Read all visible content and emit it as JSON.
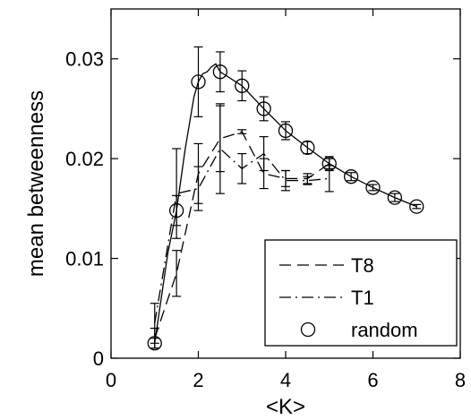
{
  "chart_data": {
    "type": "line",
    "title": "",
    "xlabel": "<K>",
    "ylabel": "mean betweenness",
    "xlim": [
      0,
      8
    ],
    "ylim": [
      0,
      0.035
    ],
    "xticks": [
      0,
      2,
      4,
      6,
      8
    ],
    "yticks": [
      0,
      0.01,
      0.02,
      0.03
    ],
    "xtick_labels": [
      "0",
      "2",
      "4",
      "6",
      "8"
    ],
    "ytick_labels": [
      "0",
      "0.01",
      "0.02",
      "0.03"
    ],
    "grid": false,
    "legend_position": "bottom-right",
    "series": [
      {
        "name": "T8",
        "style": "dashed",
        "x": [
          1.0,
          1.5,
          2.0,
          2.5,
          3.0,
          3.5,
          4.0,
          4.5,
          5.0
        ],
        "y": [
          0.002,
          0.0085,
          0.0185,
          0.022,
          0.0227,
          0.0185,
          0.018,
          0.018,
          0.0195
        ],
        "err": [
          0.001,
          0.0023,
          0.003,
          0.0033,
          0.0002,
          0.0015,
          0.0008,
          0.0005,
          0.0007
        ]
      },
      {
        "name": "T1",
        "style": "dashdot",
        "x": [
          1.0,
          1.5,
          2.0,
          2.5,
          3.0,
          3.5,
          4.0,
          4.5,
          5.0
        ],
        "y": [
          0.0035,
          0.0165,
          0.017,
          0.021,
          0.019,
          0.0205,
          0.0178,
          0.0178,
          0.018
        ],
        "err": [
          0.002,
          0.0045,
          0.0022,
          0.0045,
          0.0015,
          0.0017,
          0.001,
          0.0004,
          0.0013
        ]
      },
      {
        "name": "random",
        "style": "solid-circles",
        "x": [
          1.0,
          1.5,
          2.0,
          2.5,
          3.0,
          3.5,
          4.0,
          4.5,
          5.0,
          5.5,
          6.0,
          6.5,
          7.0
        ],
        "y": [
          0.0015,
          0.0148,
          0.0277,
          0.0287,
          0.0273,
          0.025,
          0.0228,
          0.0211,
          0.0195,
          0.0182,
          0.0171,
          0.0161,
          0.0152
        ],
        "err": [
          0.0005,
          0.0015,
          0.0035,
          0.002,
          0.0015,
          0.0012,
          0.0009,
          0.0006,
          0.0005,
          0.0004,
          0.0003,
          0.0004,
          0.0002
        ]
      }
    ],
    "random_curve": {
      "x": [
        1.0,
        1.3,
        1.5,
        1.7,
        1.9,
        2.0,
        2.1,
        2.2,
        2.3,
        2.4,
        2.5
      ],
      "y": [
        0.0015,
        0.0105,
        0.0148,
        0.021,
        0.0262,
        0.0277,
        0.0285,
        0.0287,
        0.0292,
        0.0295,
        0.0287
      ]
    }
  }
}
